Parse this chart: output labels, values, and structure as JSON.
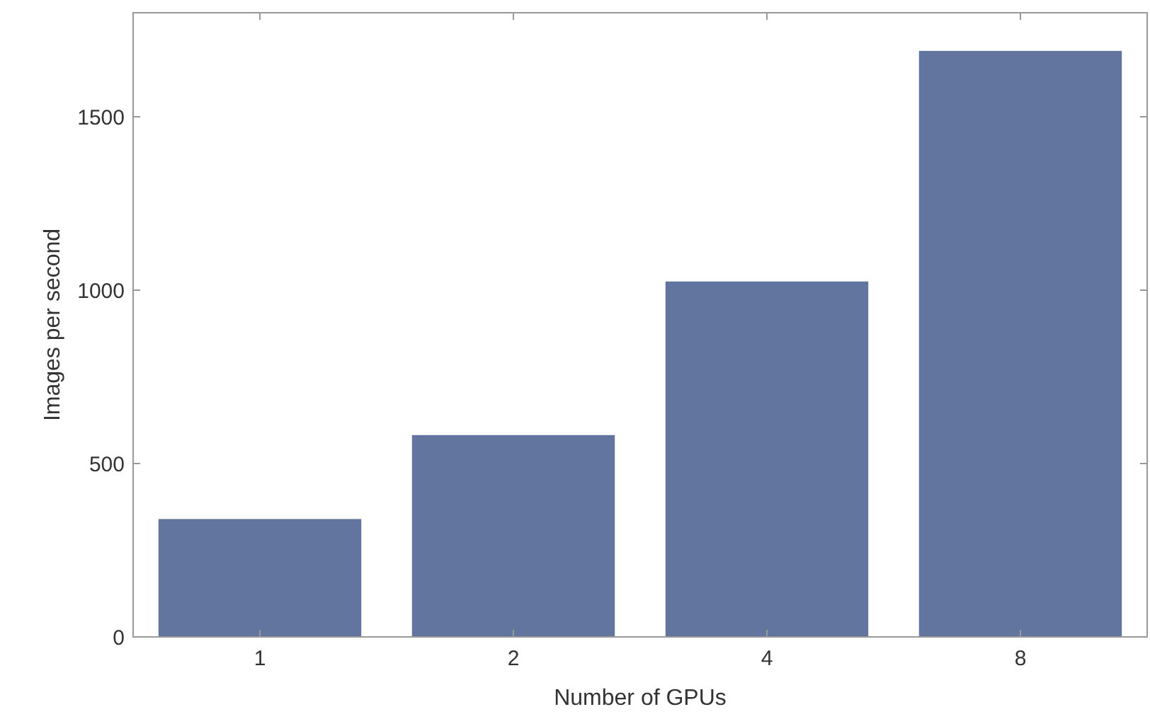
{
  "chart_data": {
    "type": "bar",
    "xlabel": "Number of GPUs",
    "ylabel": "Images per second",
    "categories": [
      "1",
      "2",
      "4",
      "8"
    ],
    "values": [
      340,
      582,
      1025,
      1690
    ],
    "color": "#62759e",
    "ylim": [
      0,
      1800
    ],
    "yticks": [
      0,
      500,
      1000,
      1500
    ],
    "grid": false
  }
}
